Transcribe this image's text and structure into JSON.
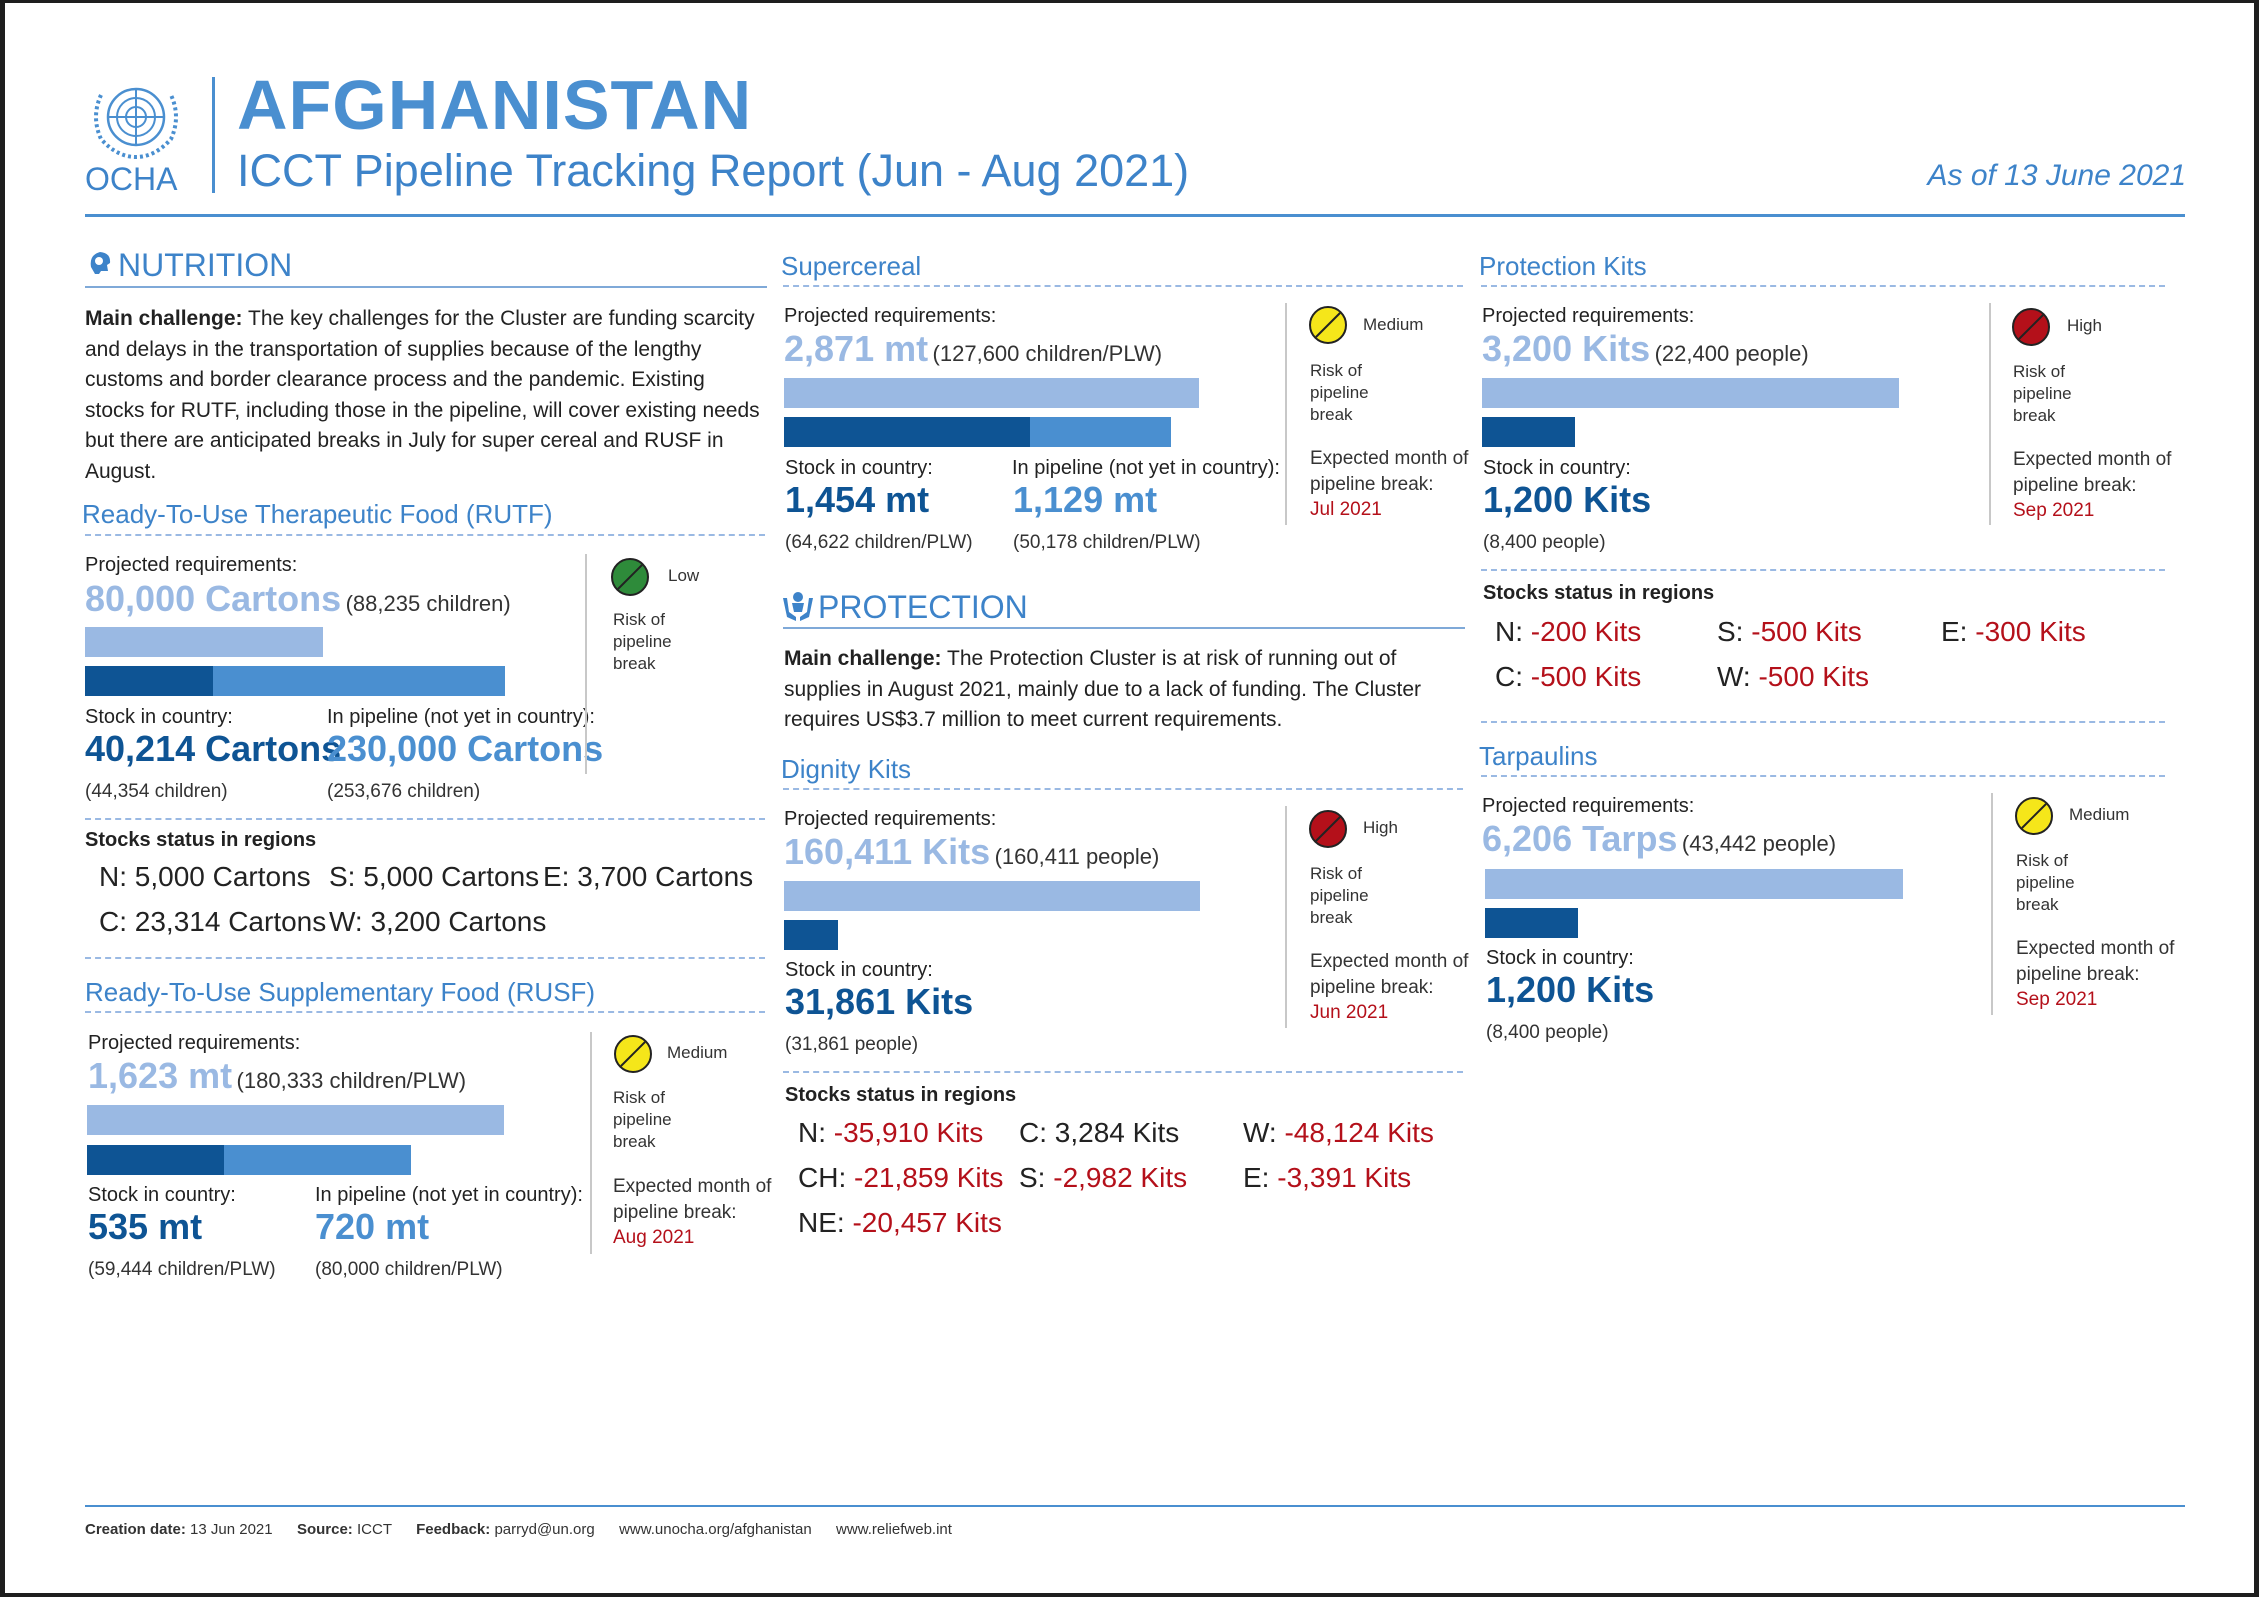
{
  "header": {
    "logo_text": "OCHA",
    "country": "AFGHANISTAN",
    "subtitle": "ICCT Pipeline Tracking Report",
    "period": "(Jun - Aug 2021)",
    "as_of": "As of 13 June 2021"
  },
  "nutrition": {
    "title": "NUTRITION",
    "challenge_label": "Main challenge:",
    "challenge_text": "The key challenges for the Cluster are funding scarcity and delays in the transportation of supplies because of the lengthy customs and border clearance process and the pandemic. Existing stocks for RUTF, including those in the pipeline, will cover existing needs but there are anticipated breaks in July for super cereal and RUSF in August.",
    "rutf": {
      "title": "Ready-To-Use Therapeutic Food (RUTF)",
      "req_label": "Projected requirements:",
      "req_value": "80,000 Cartons",
      "req_people": "(88,235 children)",
      "stock_label": "Stock in country:",
      "stock_value": "40,214 Cartons",
      "stock_people": "(44,354 children)",
      "pipe_label": "In pipeline (not yet in country):",
      "pipe_value": "230,000 Cartons",
      "pipe_people": "(253,676 children)",
      "risk_level": "Low",
      "risk_label": "Risk of pipeline break",
      "risk_color": "#2e8b3a",
      "regions_title": "Stocks status in regions",
      "regions": [
        {
          "k": "N:",
          "v": "5,000 Cartons"
        },
        {
          "k": "S:",
          "v": "5,000 Cartons"
        },
        {
          "k": "E:",
          "v": "3,700 Cartons"
        },
        {
          "k": "C:",
          "v": "23,314 Cartons"
        },
        {
          "k": "W:",
          "v": "3,200 Cartons"
        }
      ]
    },
    "rusf": {
      "title": "Ready-To-Use Supplementary Food (RUSF)",
      "req_label": "Projected requirements:",
      "req_value": "1,623 mt",
      "req_people": "(180,333 children/PLW)",
      "stock_label": "Stock in country:",
      "stock_value": "535 mt",
      "stock_people": "(59,444 children/PLW)",
      "pipe_label": "In pipeline (not yet in country):",
      "pipe_value": "720 mt",
      "pipe_people": "(80,000 children/PLW)",
      "risk_level": "Medium",
      "risk_label": "Risk of pipeline break",
      "risk_color": "#f5e61a",
      "exp_label": "Expected month of pipeline break:",
      "exp_month": "Aug 2021"
    }
  },
  "supercereal": {
    "title": "Supercereal",
    "req_label": "Projected requirements:",
    "req_value": "2,871 mt",
    "req_people": "(127,600 children/PLW)",
    "stock_label": "Stock in country:",
    "stock_value": "1,454 mt",
    "stock_people": "(64,622 children/PLW)",
    "pipe_label": "In pipeline (not yet in country):",
    "pipe_value": "1,129 mt",
    "pipe_people": "(50,178 children/PLW)",
    "risk_level": "Medium",
    "risk_label": "Risk of pipeline break",
    "risk_color": "#f5e61a",
    "exp_label": "Expected month of pipeline break:",
    "exp_month": "Jul 2021"
  },
  "protection": {
    "title": "PROTECTION",
    "challenge_label": "Main challenge:",
    "challenge_text": "The Protection Cluster is at risk of running out of supplies in August 2021, mainly due to a lack of funding. The Cluster requires US$3.7 million to meet current requirements.",
    "dignity": {
      "title": "Dignity Kits",
      "req_label": "Projected requirements:",
      "req_value": "160,411 Kits",
      "req_people": "(160,411 people)",
      "stock_label": "Stock in country:",
      "stock_value": "31,861 Kits",
      "stock_people": "(31,861 people)",
      "risk_level": "High",
      "risk_label": "Risk of pipeline break",
      "risk_color": "#b4101a",
      "exp_label": "Expected month of pipeline break:",
      "exp_month": "Jun 2021",
      "regions_title": "Stocks status in regions",
      "regions": [
        {
          "k": "N:",
          "v": "-35,910 Kits",
          "neg": true
        },
        {
          "k": "C:",
          "v": "3,284 Kits",
          "neg": false
        },
        {
          "k": "W:",
          "v": "-48,124 Kits",
          "neg": true
        },
        {
          "k": "CH:",
          "v": "-21,859 Kits",
          "neg": true
        },
        {
          "k": "S:",
          "v": "-2,982 Kits",
          "neg": true
        },
        {
          "k": "E:",
          "v": "-3,391 Kits",
          "neg": true
        },
        {
          "k": "NE:",
          "v": "-20,457 Kits",
          "neg": true
        }
      ]
    },
    "kits": {
      "title": "Protection Kits",
      "req_label": "Projected requirements:",
      "req_value": "3,200 Kits",
      "req_people": "(22,400 people)",
      "stock_label": "Stock in country:",
      "stock_value": "1,200 Kits",
      "stock_people": "(8,400 people)",
      "risk_level": "High",
      "risk_label": "Risk of pipeline break",
      "risk_color": "#b4101a",
      "exp_label": "Expected month of pipeline break:",
      "exp_month": "Sep 2021",
      "regions_title": "Stocks status in regions",
      "regions": [
        {
          "k": "N:",
          "v": "-200 Kits"
        },
        {
          "k": "S:",
          "v": "-500 Kits"
        },
        {
          "k": "E:",
          "v": "-300 Kits"
        },
        {
          "k": "C:",
          "v": "-500 Kits"
        },
        {
          "k": "W:",
          "v": "-500 Kits"
        }
      ]
    },
    "tarps": {
      "title": "Tarpaulins",
      "req_label": "Projected requirements:",
      "req_value": "6,206 Tarps",
      "req_people": "(43,442 people)",
      "stock_label": "Stock in country:",
      "stock_value": "1,200 Kits",
      "stock_people": "(8,400 people)",
      "risk_level": "Medium",
      "risk_label": "Risk of pipeline break",
      "risk_color": "#f5e61a",
      "exp_label": "Expected month of pipeline break:",
      "exp_month": "Sep 2021"
    }
  },
  "footer": {
    "creation_label": "Creation date:",
    "creation_value": "13 Jun 2021",
    "source_label": "Source:",
    "source_value": "ICCT",
    "feedback_label": "Feedback:",
    "feedback_value": "parryd@un.org",
    "link1": "www.unocha.org/afghanistan",
    "link2": "www.reliefweb.int"
  },
  "colors": {
    "accent": "#4a8fd0",
    "navy": "#0e5494",
    "light_bar": "#9ab9e3",
    "negative": "#b4101a"
  }
}
